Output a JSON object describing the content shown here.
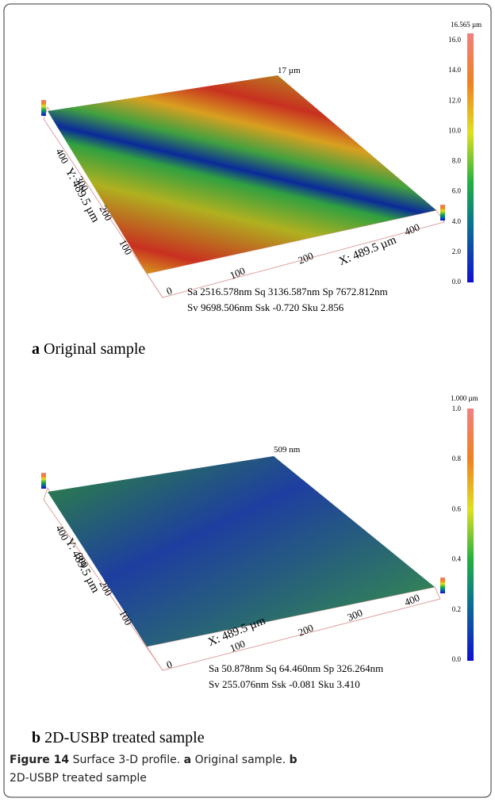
{
  "panels": [
    {
      "colorbar_max": "16.565 µm",
      "colorbar_ticks": [
        "16.0",
        "14.0",
        "12.0",
        "10.0",
        "8.0",
        "6.0",
        "4.0",
        "2.0",
        "0.0"
      ],
      "peak_label": "17 µm",
      "y_axis_label": "Y: 489.5 µm",
      "y_ticks": [
        "400",
        "300",
        "200",
        "100"
      ],
      "x_axis_label": "X: 489.5 µm",
      "x_ticks": [
        "0",
        "100",
        "200",
        "400"
      ],
      "stats": [
        "Sa 2516.578nm  Sq 3136.587nm  Sp 7672.812nm",
        "Sv 9698.506nm  Ssk -0.720  Sku 2.856"
      ],
      "caption_letter": "a",
      "caption_text": "Original sample"
    },
    {
      "colorbar_max": "1.000 µm",
      "colorbar_ticks": [
        "1.0",
        "0.8",
        "0.6",
        "0.4",
        "0.2",
        "0.0"
      ],
      "peak_label": "509 nm",
      "y_axis_label": "Y: 489.5 µm",
      "y_ticks": [
        "400",
        "300",
        "200",
        "100"
      ],
      "x_axis_label": "X: 489.5 µm",
      "x_ticks": [
        "0",
        "100",
        "200",
        "300",
        "400"
      ],
      "stats": [
        "Sa 50.878nm  Sq 64.460nm  Sp 326.264nm",
        "Sv 255.076nm  Ssk -0.081  Sku 3.410"
      ],
      "caption_letter": "b",
      "caption_text": "2D-USBP treated sample"
    }
  ],
  "figure_caption": {
    "label": "Figure 14",
    "text": "Surface 3-D profile.",
    "a_letter": "a",
    "a_text": "Original sample.",
    "b_letter": "b",
    "b_text": "2D-USBP treated sample"
  }
}
